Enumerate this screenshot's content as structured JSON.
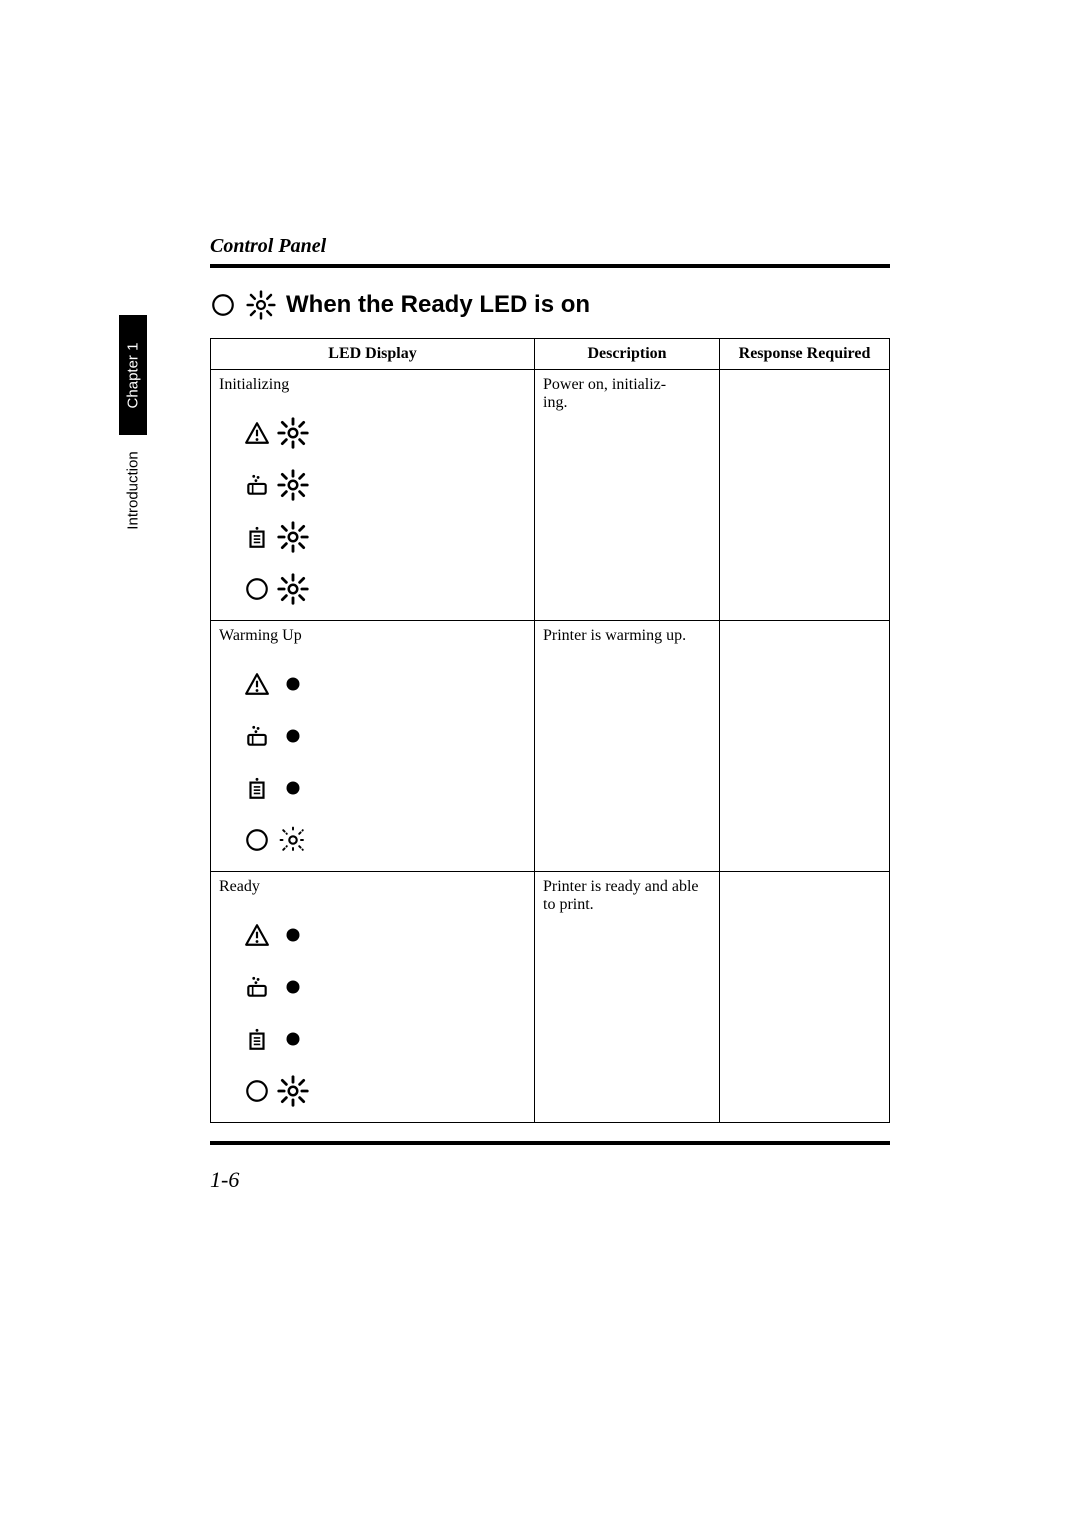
{
  "running_head": "Control Panel",
  "side_tab": "Chapter 1",
  "side_label": "Introduction",
  "section_title": "When the Ready LED is on",
  "page_number": "1-6",
  "table": {
    "headers": {
      "led": "LED Display",
      "desc": "Description",
      "resp": "Response Required"
    },
    "rows": [
      {
        "label": "Initializing",
        "description": "Power on, initializ-\ning.",
        "response": "",
        "leds": [
          {
            "icon": "warning",
            "state": "blink-bold"
          },
          {
            "icon": "toner",
            "state": "blink-bold"
          },
          {
            "icon": "paper",
            "state": "blink-bold"
          },
          {
            "icon": "ready",
            "state": "blink-bold"
          }
        ]
      },
      {
        "label": "Warming Up",
        "description": "Printer is warming up.",
        "response": "",
        "leds": [
          {
            "icon": "warning",
            "state": "off"
          },
          {
            "icon": "toner",
            "state": "off"
          },
          {
            "icon": "paper",
            "state": "off"
          },
          {
            "icon": "ready",
            "state": "blink-slow"
          }
        ]
      },
      {
        "label": "Ready",
        "description": "Printer is ready and able to print.",
        "response": "",
        "leds": [
          {
            "icon": "warning",
            "state": "off"
          },
          {
            "icon": "toner",
            "state": "off"
          },
          {
            "icon": "paper",
            "state": "off"
          },
          {
            "icon": "ready",
            "state": "blink-bold"
          }
        ]
      }
    ]
  },
  "colors": {
    "text": "#000000",
    "background": "#ffffff",
    "tab_bg": "#000000",
    "tab_fg": "#ffffff"
  },
  "icon_sizes": {
    "category": 28,
    "state": 30
  }
}
